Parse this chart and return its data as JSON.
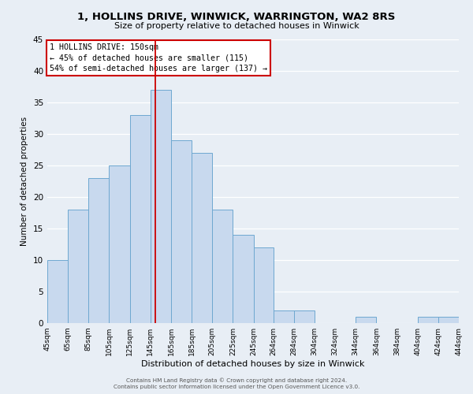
{
  "title_line1": "1, HOLLINS DRIVE, WINWICK, WARRINGTON, WA2 8RS",
  "title_line2": "Size of property relative to detached houses in Winwick",
  "xlabel": "Distribution of detached houses by size in Winwick",
  "ylabel": "Number of detached properties",
  "bin_edges": [
    45,
    65,
    85,
    105,
    125,
    145,
    165,
    185,
    205,
    225,
    245,
    264,
    284,
    304,
    324,
    344,
    364,
    384,
    404,
    424,
    444
  ],
  "bar_heights": [
    10,
    18,
    23,
    25,
    33,
    37,
    29,
    27,
    18,
    14,
    12,
    2,
    2,
    0,
    0,
    1,
    0,
    0,
    1,
    1
  ],
  "bar_color": "#c8d9ee",
  "bar_edge_color": "#6ea8d0",
  "tick_labels": [
    "45sqm",
    "65sqm",
    "85sqm",
    "105sqm",
    "125sqm",
    "145sqm",
    "165sqm",
    "185sqm",
    "205sqm",
    "225sqm",
    "245sqm",
    "264sqm",
    "284sqm",
    "304sqm",
    "324sqm",
    "344sqm",
    "364sqm",
    "384sqm",
    "404sqm",
    "424sqm",
    "444sqm"
  ],
  "ylim": [
    0,
    45
  ],
  "yticks": [
    0,
    5,
    10,
    15,
    20,
    25,
    30,
    35,
    40,
    45
  ],
  "vline_x": 150,
  "vline_color": "#cc0000",
  "annotation_title": "1 HOLLINS DRIVE: 150sqm",
  "annotation_line1": "← 45% of detached houses are smaller (115)",
  "annotation_line2": "54% of semi-detached houses are larger (137) →",
  "box_color": "#ffffff",
  "box_edge_color": "#cc0000",
  "footer_line1": "Contains HM Land Registry data © Crown copyright and database right 2024.",
  "footer_line2": "Contains public sector information licensed under the Open Government Licence v3.0.",
  "background_color": "#e8eef5",
  "plot_bg_color": "#e8eef5"
}
